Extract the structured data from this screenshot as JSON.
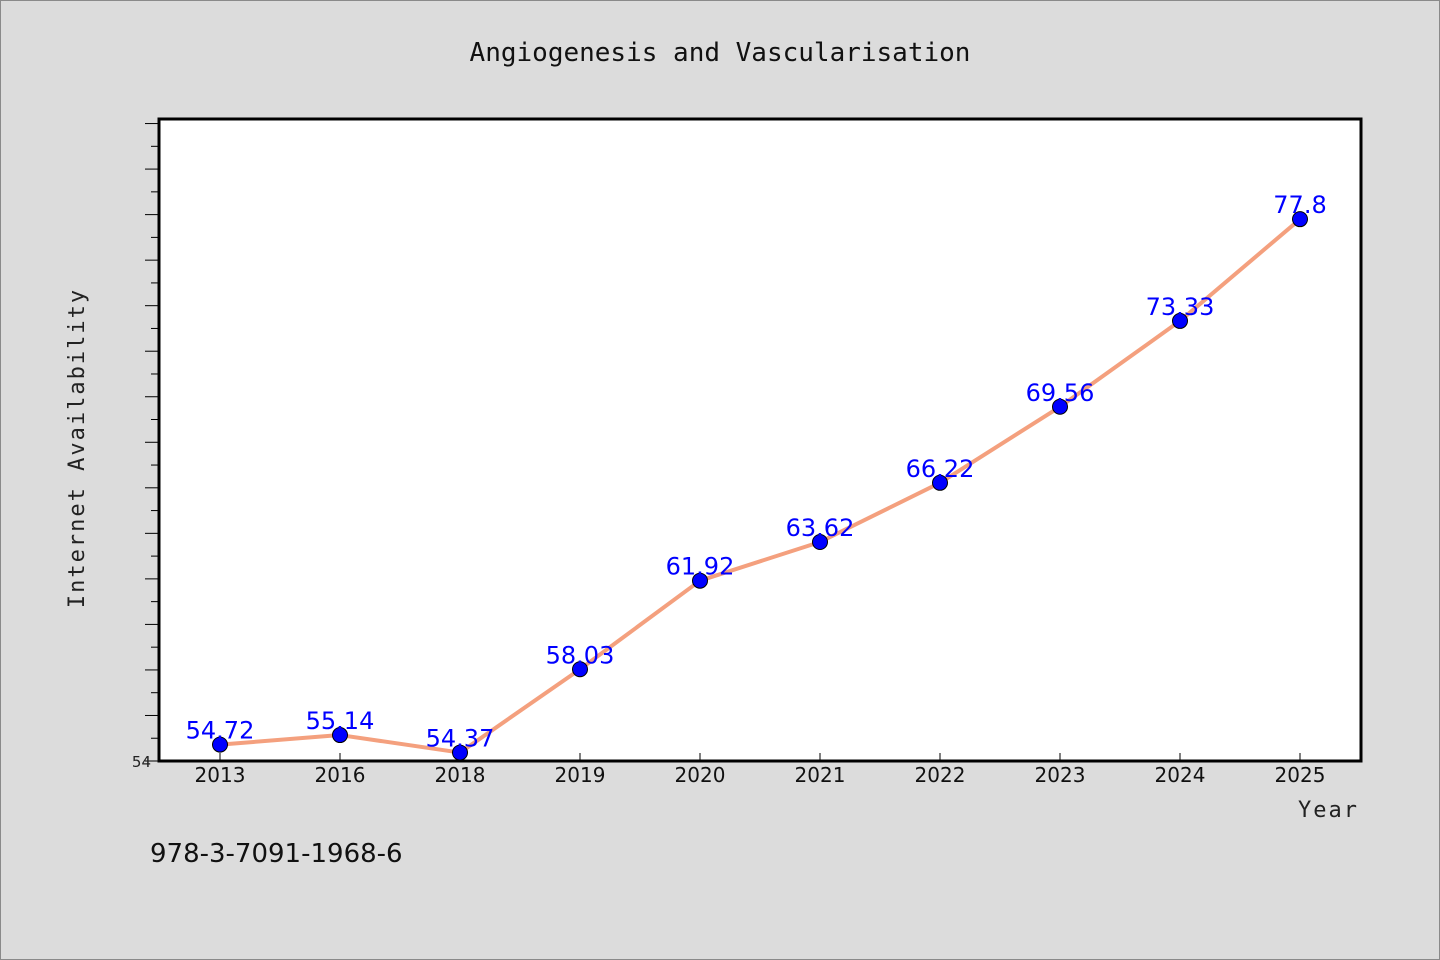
{
  "chart_data": {
    "type": "line",
    "title": "Angiogenesis and Vascularisation",
    "xlabel": "Year",
    "ylabel": "Internet Availability",
    "categories": [
      "2013",
      "2016",
      "2018",
      "2019",
      "2020",
      "2021",
      "2022",
      "2023",
      "2024",
      "2025"
    ],
    "series": [
      {
        "values": [
          54.72,
          55.14,
          54.37,
          58.03,
          61.92,
          63.62,
          66.22,
          69.56,
          73.33,
          77.8
        ],
        "labels": [
          "54.72",
          "55.14",
          "54.37",
          "58.03",
          "61.92",
          "63.62",
          "66.22",
          "69.56",
          "73.33",
          "77.8"
        ]
      }
    ],
    "ylim": [
      54,
      82.2
    ],
    "yticks_labeled": [
      "54"
    ],
    "grid": false,
    "legend": "none",
    "colors": {
      "line": "#f4a07e",
      "marker": "#0000ff",
      "data_label": "#0000ff",
      "plot_background": "#ffffff",
      "figure_background": "#dcdcdc"
    }
  },
  "footer": {
    "isbn": "978-3-7091-1968-6"
  }
}
